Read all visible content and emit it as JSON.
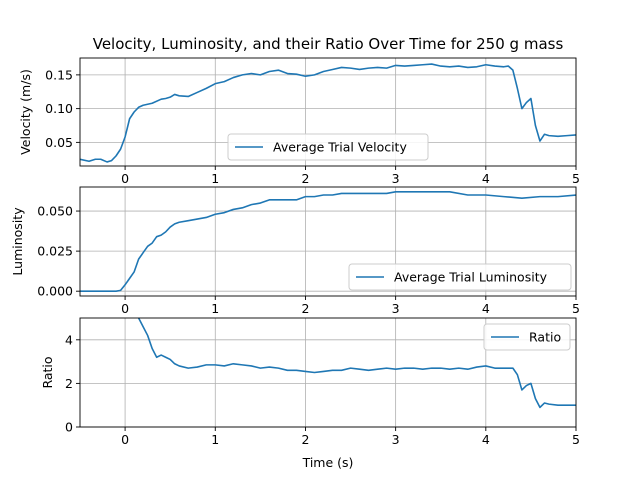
{
  "figure": {
    "title": "Velocity, Luminosity, and their Ratio Over Time for 250 g mass"
  },
  "colors": {
    "series": "#1f77b4",
    "grid": "#b0b0b0",
    "axis": "#000000"
  },
  "chart_data": [
    {
      "type": "line",
      "ylabel": "Velocity (m/s)",
      "xlabel": "",
      "xlim": [
        -0.5,
        5
      ],
      "ylim": [
        0.015,
        0.175
      ],
      "xticks": [
        0,
        1,
        2,
        3,
        4,
        5
      ],
      "xtick_labels": [
        "0",
        "1",
        "2",
        "3",
        "4",
        "5"
      ],
      "yticks": [
        0.05,
        0.1,
        0.15
      ],
      "ytick_labels": [
        "0.05",
        "0.10",
        "0.15"
      ],
      "grid": true,
      "legend": "bottom-center",
      "series": [
        {
          "name": "Average Trial Velocity",
          "x": [
            -0.5,
            -0.4,
            -0.33,
            -0.27,
            -0.2,
            -0.15,
            -0.1,
            -0.05,
            0.0,
            0.05,
            0.1,
            0.15,
            0.2,
            0.3,
            0.4,
            0.45,
            0.5,
            0.55,
            0.6,
            0.7,
            0.8,
            0.9,
            1.0,
            1.1,
            1.2,
            1.3,
            1.4,
            1.5,
            1.6,
            1.7,
            1.8,
            1.9,
            2.0,
            2.1,
            2.2,
            2.3,
            2.4,
            2.5,
            2.6,
            2.7,
            2.8,
            2.9,
            3.0,
            3.1,
            3.2,
            3.3,
            3.4,
            3.5,
            3.6,
            3.7,
            3.8,
            3.9,
            4.0,
            4.1,
            4.2,
            4.25,
            4.3,
            4.35,
            4.4,
            4.45,
            4.5,
            4.55,
            4.6,
            4.65,
            4.7,
            4.8,
            4.9,
            5.0
          ],
          "y": [
            0.025,
            0.022,
            0.025,
            0.025,
            0.021,
            0.023,
            0.03,
            0.04,
            0.058,
            0.085,
            0.095,
            0.102,
            0.105,
            0.108,
            0.114,
            0.115,
            0.117,
            0.121,
            0.119,
            0.118,
            0.124,
            0.13,
            0.137,
            0.14,
            0.146,
            0.15,
            0.152,
            0.15,
            0.155,
            0.157,
            0.152,
            0.151,
            0.148,
            0.15,
            0.155,
            0.158,
            0.161,
            0.16,
            0.158,
            0.16,
            0.161,
            0.16,
            0.164,
            0.163,
            0.164,
            0.165,
            0.166,
            0.163,
            0.162,
            0.163,
            0.161,
            0.162,
            0.165,
            0.163,
            0.162,
            0.163,
            0.157,
            0.13,
            0.1,
            0.109,
            0.115,
            0.075,
            0.052,
            0.062,
            0.06,
            0.059,
            0.06,
            0.061
          ]
        }
      ]
    },
    {
      "type": "line",
      "ylabel": "Luminosity",
      "xlabel": "",
      "xlim": [
        -0.5,
        5
      ],
      "ylim": [
        -0.003,
        0.065
      ],
      "xticks": [
        0,
        1,
        2,
        3,
        4,
        5
      ],
      "xtick_labels": [
        "0",
        "1",
        "2",
        "3",
        "4",
        "5"
      ],
      "yticks": [
        0.0,
        0.025,
        0.05
      ],
      "ytick_labels": [
        "0.000",
        "0.025",
        "0.050"
      ],
      "grid": true,
      "legend": "bottom-right",
      "series": [
        {
          "name": "Average Trial Luminosity",
          "x": [
            -0.5,
            -0.3,
            -0.1,
            -0.05,
            0.0,
            0.05,
            0.1,
            0.15,
            0.2,
            0.25,
            0.3,
            0.35,
            0.4,
            0.45,
            0.5,
            0.55,
            0.6,
            0.7,
            0.8,
            0.9,
            1.0,
            1.1,
            1.2,
            1.3,
            1.4,
            1.5,
            1.6,
            1.7,
            1.8,
            1.9,
            2.0,
            2.1,
            2.2,
            2.3,
            2.4,
            2.5,
            2.6,
            2.7,
            2.8,
            2.9,
            3.0,
            3.2,
            3.4,
            3.6,
            3.8,
            4.0,
            4.2,
            4.4,
            4.6,
            4.8,
            5.0
          ],
          "y": [
            0.0,
            0.0,
            0.0,
            0.0005,
            0.004,
            0.008,
            0.012,
            0.02,
            0.024,
            0.028,
            0.03,
            0.034,
            0.035,
            0.037,
            0.04,
            0.042,
            0.043,
            0.044,
            0.045,
            0.046,
            0.048,
            0.049,
            0.051,
            0.052,
            0.054,
            0.055,
            0.057,
            0.057,
            0.057,
            0.057,
            0.059,
            0.059,
            0.06,
            0.06,
            0.061,
            0.061,
            0.061,
            0.061,
            0.061,
            0.061,
            0.062,
            0.062,
            0.062,
            0.062,
            0.06,
            0.06,
            0.059,
            0.058,
            0.059,
            0.059,
            0.06
          ]
        }
      ]
    },
    {
      "type": "line",
      "ylabel": "Ratio",
      "xlabel": "Time (s)",
      "xlim": [
        -0.5,
        5
      ],
      "ylim": [
        0,
        5
      ],
      "xticks": [
        0,
        1,
        2,
        3,
        4,
        5
      ],
      "xtick_labels": [
        "0",
        "1",
        "2",
        "3",
        "4",
        "5"
      ],
      "yticks": [
        0,
        2,
        4
      ],
      "ytick_labels": [
        "0",
        "2",
        "4"
      ],
      "grid": true,
      "legend": "top-right",
      "series": [
        {
          "name": "Ratio",
          "x": [
            0.15,
            0.2,
            0.25,
            0.3,
            0.35,
            0.4,
            0.45,
            0.5,
            0.55,
            0.6,
            0.7,
            0.8,
            0.9,
            1.0,
            1.1,
            1.2,
            1.3,
            1.4,
            1.5,
            1.6,
            1.7,
            1.8,
            1.9,
            2.0,
            2.1,
            2.2,
            2.3,
            2.4,
            2.5,
            2.6,
            2.7,
            2.8,
            2.9,
            3.0,
            3.1,
            3.2,
            3.3,
            3.4,
            3.5,
            3.6,
            3.7,
            3.8,
            3.9,
            4.0,
            4.1,
            4.2,
            4.3,
            4.35,
            4.4,
            4.45,
            4.5,
            4.55,
            4.6,
            4.65,
            4.7,
            4.8,
            4.9,
            5.0
          ],
          "y": [
            5.0,
            4.6,
            4.2,
            3.6,
            3.2,
            3.3,
            3.2,
            3.1,
            2.9,
            2.8,
            2.7,
            2.75,
            2.85,
            2.85,
            2.8,
            2.9,
            2.85,
            2.8,
            2.7,
            2.75,
            2.7,
            2.6,
            2.6,
            2.55,
            2.5,
            2.55,
            2.6,
            2.6,
            2.7,
            2.65,
            2.6,
            2.65,
            2.7,
            2.65,
            2.7,
            2.7,
            2.65,
            2.7,
            2.7,
            2.65,
            2.7,
            2.65,
            2.75,
            2.8,
            2.7,
            2.7,
            2.7,
            2.4,
            1.7,
            1.9,
            2.0,
            1.3,
            0.9,
            1.1,
            1.05,
            1.0,
            1.0,
            1.0
          ]
        }
      ]
    }
  ]
}
